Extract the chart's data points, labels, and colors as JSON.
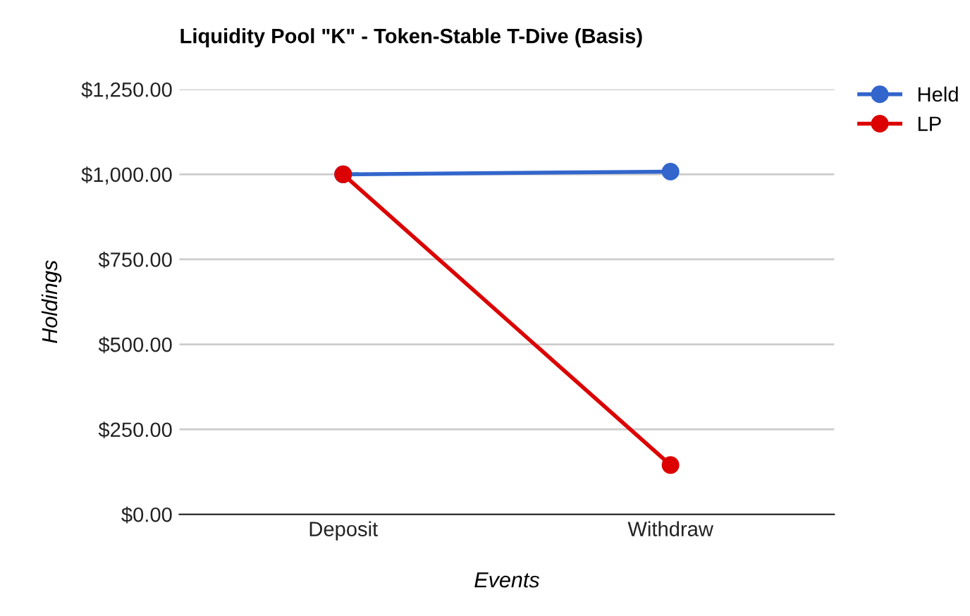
{
  "chart_data": {
    "type": "line",
    "title": "Liquidity Pool \"K\" - Token-Stable T-Dive (Basis)",
    "xlabel": "Events",
    "ylabel": "Holdings",
    "categories": [
      "Deposit",
      "Withdraw"
    ],
    "series": [
      {
        "name": "Held",
        "color": "#3366cc",
        "values": [
          1000,
          1008
        ]
      },
      {
        "name": "LP",
        "color": "#dc0000",
        "values": [
          1000,
          145
        ]
      }
    ],
    "ylim": [
      0,
      1250
    ],
    "yticks": [
      {
        "value": 0,
        "label": "$0.00"
      },
      {
        "value": 250,
        "label": "$250.00"
      },
      {
        "value": 500,
        "label": "$500.00"
      },
      {
        "value": 750,
        "label": "$750.00"
      },
      {
        "value": 1000,
        "label": "$1,000.00"
      },
      {
        "value": 1250,
        "label": "$1,250.00"
      }
    ],
    "grid": "y",
    "legend": "top right",
    "marker": "circle",
    "line_style": "solid"
  }
}
